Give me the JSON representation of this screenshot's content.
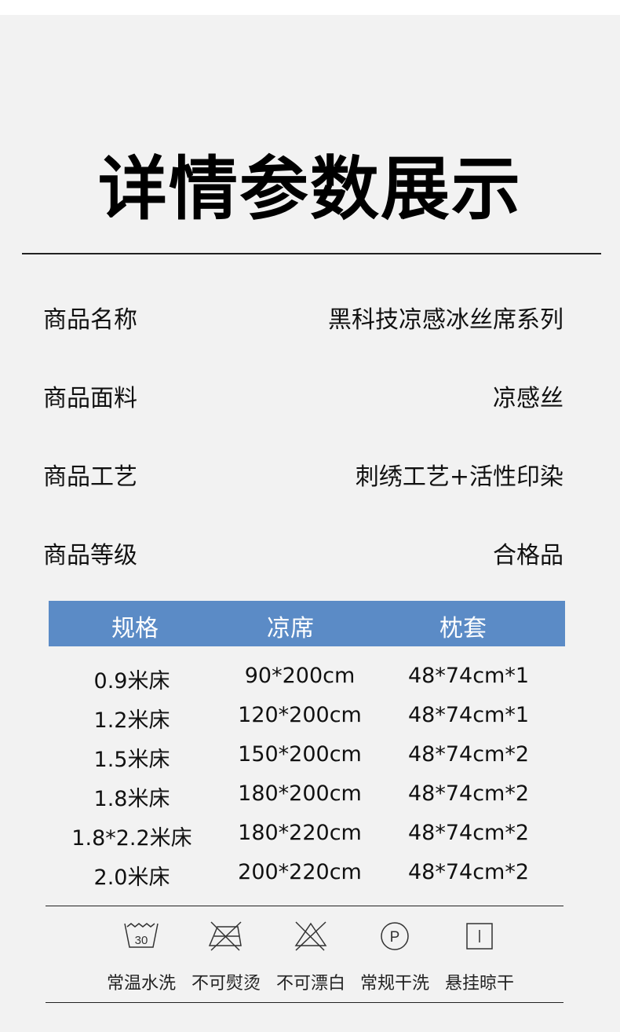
{
  "title": "详情参数展示",
  "params": [
    {
      "label": "商品名称",
      "value": "黑科技凉感冰丝席系列"
    },
    {
      "label": "商品面料",
      "value": "凉感丝"
    },
    {
      "label": "商品工艺",
      "value": "刺绣工艺+活性印染"
    },
    {
      "label": "商品等级",
      "value": "合格品"
    }
  ],
  "table": {
    "headers": [
      "规格",
      "凉席",
      "枕套"
    ],
    "rows": [
      [
        "0.9米床",
        "90*200cm",
        "48*74cm*1"
      ],
      [
        "1.2米床",
        "120*200cm",
        "48*74cm*1"
      ],
      [
        "1.5米床",
        "150*200cm",
        "48*74cm*2"
      ],
      [
        "1.8米床",
        "180*200cm",
        "48*74cm*2"
      ],
      [
        "1.8*2.2米床",
        "180*220cm",
        "48*74cm*2"
      ],
      [
        "2.0米床",
        "200*220cm",
        "48*74cm*2"
      ]
    ],
    "header_color": "#5b8bc6"
  },
  "care": [
    {
      "icon": "wash-30-icon",
      "label": "常温水洗",
      "text": "30"
    },
    {
      "icon": "no-iron-icon",
      "label": "不可熨烫"
    },
    {
      "icon": "no-bleach-icon",
      "label": "不可漂白"
    },
    {
      "icon": "dry-clean-p-icon",
      "label": "常规干洗",
      "text": "P"
    },
    {
      "icon": "hang-dry-icon",
      "label": "悬挂晾干"
    }
  ]
}
